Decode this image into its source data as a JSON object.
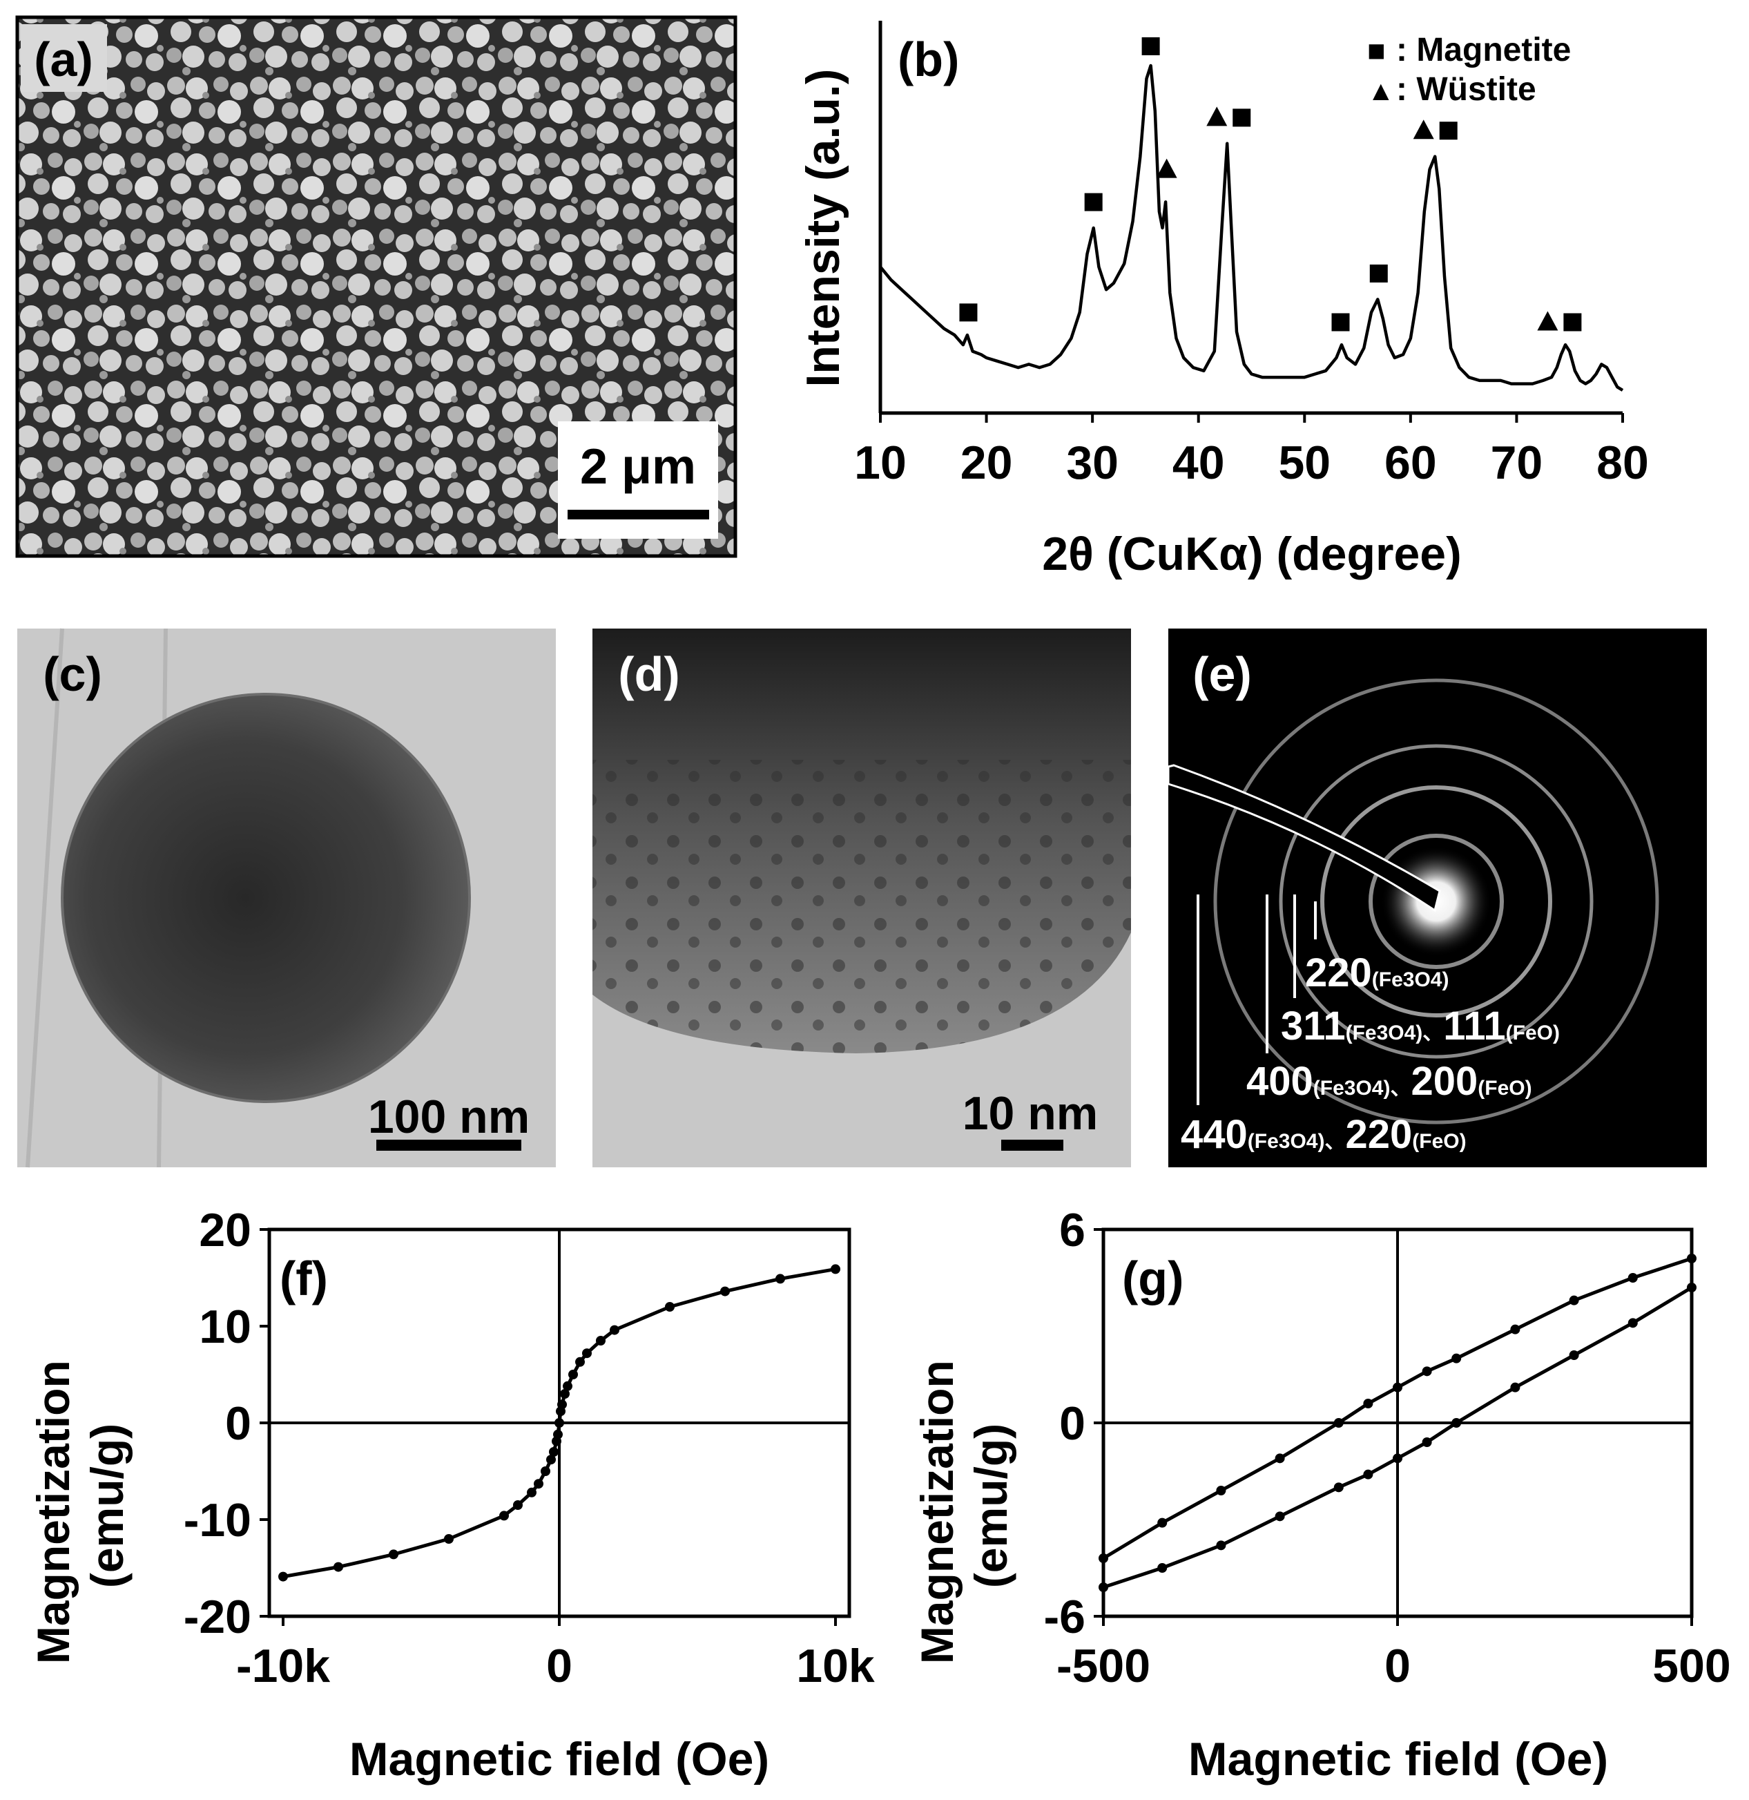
{
  "panels": {
    "a": {
      "label": "(a)",
      "scale_bar": "2 μm"
    },
    "c": {
      "label": "(c)",
      "scale_bar": "100 nm"
    },
    "d": {
      "label": "(d)",
      "scale_bar": "10 nm"
    },
    "e": {
      "label": "(e)",
      "rings": [
        {
          "line1": "220",
          "note1": "(Fe3O4)",
          "line2": "",
          "note2": ""
        },
        {
          "line1": "311",
          "note1": "(Fe3O4)、",
          "line2": "111",
          "note2": "(FeO)"
        },
        {
          "line1": "400",
          "note1": "(Fe3O4)、",
          "line2": "200",
          "note2": "(FeO)"
        },
        {
          "line1": "440",
          "note1": "(Fe3O4)、",
          "line2": "220",
          "note2": "(FeO)"
        }
      ]
    }
  },
  "chart_data": [
    {
      "id": "b",
      "type": "line",
      "panel_label": "(b)",
      "xlabel": "2θ (CuKα) (degree)",
      "ylabel": "Intensity (a.u.)",
      "xlim": [
        10,
        80
      ],
      "xticks": [
        10,
        20,
        30,
        40,
        50,
        60,
        70,
        80
      ],
      "yticks": [],
      "legend": {
        "placement": "top-right",
        "entries": [
          {
            "marker": "square",
            "symbol": "■",
            "label": ": Magnetite"
          },
          {
            "marker": "triangle",
            "symbol": "▲",
            "label": ": Wüstite"
          }
        ]
      },
      "series": [
        {
          "x": [
            10,
            11,
            12,
            13,
            14,
            15,
            16,
            17,
            17.8,
            18.2,
            18.7,
            19.5,
            20,
            21,
            22,
            23,
            24,
            25,
            26,
            27,
            28,
            28.8,
            29.5,
            30.1,
            30.6,
            31.3,
            32,
            33,
            33.8,
            34.5,
            35.1,
            35.5,
            35.9,
            36.3,
            36.6,
            36.9,
            37.3,
            37.9,
            38.6,
            39.5,
            40.5,
            41.5,
            42.2,
            42.7,
            43.1,
            43.6,
            44.3,
            45,
            46,
            47,
            48,
            49,
            50,
            51,
            52,
            53,
            53.5,
            54,
            54.8,
            55.6,
            56.3,
            56.9,
            57.4,
            57.9,
            58.5,
            59.3,
            60,
            60.7,
            61.3,
            61.8,
            62.3,
            62.7,
            63.2,
            63.8,
            64.6,
            65.5,
            66.5,
            67.5,
            68.5,
            69.5,
            70.5,
            71.5,
            72.5,
            73.3,
            73.8,
            74.2,
            74.6,
            75,
            75.5,
            76,
            76.5,
            77,
            77.5,
            78,
            78.5,
            79,
            79.5,
            80
          ],
          "y": [
            0.38,
            0.34,
            0.31,
            0.28,
            0.25,
            0.22,
            0.19,
            0.17,
            0.14,
            0.17,
            0.12,
            0.11,
            0.1,
            0.09,
            0.08,
            0.07,
            0.08,
            0.07,
            0.08,
            0.11,
            0.16,
            0.24,
            0.42,
            0.5,
            0.38,
            0.31,
            0.33,
            0.39,
            0.52,
            0.72,
            0.96,
            1.0,
            0.86,
            0.55,
            0.5,
            0.58,
            0.3,
            0.16,
            0.1,
            0.07,
            0.06,
            0.12,
            0.5,
            0.76,
            0.5,
            0.18,
            0.08,
            0.05,
            0.04,
            0.04,
            0.04,
            0.04,
            0.04,
            0.05,
            0.06,
            0.1,
            0.14,
            0.1,
            0.08,
            0.13,
            0.24,
            0.28,
            0.22,
            0.14,
            0.1,
            0.11,
            0.16,
            0.3,
            0.55,
            0.68,
            0.72,
            0.62,
            0.35,
            0.13,
            0.07,
            0.04,
            0.03,
            0.03,
            0.03,
            0.02,
            0.02,
            0.02,
            0.03,
            0.04,
            0.07,
            0.11,
            0.14,
            0.12,
            0.06,
            0.03,
            0.02,
            0.03,
            0.05,
            0.08,
            0.07,
            0.04,
            0.01,
            0.0
          ]
        }
      ],
      "peak_markers": [
        {
          "x": 18.3,
          "y": 0.18,
          "symbols": [
            "square"
          ]
        },
        {
          "x": 30.1,
          "y": 0.52,
          "symbols": [
            "square"
          ]
        },
        {
          "x": 35.5,
          "y": 1.0,
          "symbols": [
            "square"
          ]
        },
        {
          "x": 37.0,
          "y": 0.62,
          "symbols": [
            "triangle"
          ]
        },
        {
          "x": 42.9,
          "y": 0.78,
          "symbols": [
            "triangle",
            "square"
          ]
        },
        {
          "x": 53.4,
          "y": 0.15,
          "symbols": [
            "square"
          ]
        },
        {
          "x": 57.0,
          "y": 0.3,
          "symbols": [
            "square"
          ]
        },
        {
          "x": 62.4,
          "y": 0.74,
          "symbols": [
            "triangle",
            "square"
          ]
        },
        {
          "x": 74.1,
          "y": 0.15,
          "symbols": [
            "triangle",
            "square"
          ]
        }
      ]
    },
    {
      "id": "f",
      "type": "line",
      "panel_label": "(f)",
      "xlabel": "Magnetic field (Oe)",
      "ylabel": "Magnetization\n(emu/g)",
      "xlim": [
        -10500,
        10500
      ],
      "ylim": [
        -20,
        20
      ],
      "xticks": [
        {
          "value": -10000,
          "label": "-10k"
        },
        {
          "value": 0,
          "label": "0"
        },
        {
          "value": 10000,
          "label": "10k"
        }
      ],
      "yticks": [
        20,
        10,
        0,
        -10,
        -20
      ],
      "series": [
        {
          "x": [
            -10000,
            -8000,
            -6000,
            -4000,
            -2000,
            -1500,
            -1000,
            -750,
            -500,
            -300,
            -200,
            -100,
            -50,
            0,
            50,
            100,
            200,
            300,
            500,
            750,
            1000,
            1500,
            2000,
            4000,
            6000,
            8000,
            10000
          ],
          "y": [
            -15.9,
            -14.9,
            -13.6,
            -12.0,
            -9.6,
            -8.5,
            -7.2,
            -6.3,
            -5.0,
            -3.8,
            -3.0,
            -1.9,
            -1.2,
            0.0,
            1.2,
            1.9,
            3.0,
            3.8,
            5.0,
            6.3,
            7.2,
            8.5,
            9.6,
            12.0,
            13.6,
            14.9,
            15.9
          ]
        }
      ]
    },
    {
      "id": "g",
      "type": "line",
      "panel_label": "(g)",
      "xlabel": "Magnetic field (Oe)",
      "ylabel": "Magnetization\n(emu/g)",
      "xlim": [
        -500,
        500
      ],
      "ylim": [
        -6,
        6
      ],
      "xticks": [
        {
          "value": -500,
          "label": "-500"
        },
        {
          "value": 0,
          "label": "0"
        },
        {
          "value": 500,
          "label": "500"
        }
      ],
      "yticks": [
        6,
        0,
        -6
      ],
      "series": [
        {
          "x": [
            500,
            400,
            300,
            200,
            100,
            50,
            0,
            -50,
            -100,
            -200,
            -300,
            -400,
            -500
          ],
          "y": [
            5.1,
            4.5,
            3.8,
            2.9,
            2.0,
            1.6,
            1.1,
            0.6,
            0.0,
            -1.1,
            -2.1,
            -3.1,
            -4.2
          ]
        },
        {
          "x": [
            -500,
            -400,
            -300,
            -200,
            -100,
            -50,
            0,
            50,
            100,
            200,
            300,
            400,
            500
          ],
          "y": [
            -5.1,
            -4.5,
            -3.8,
            -2.9,
            -2.0,
            -1.6,
            -1.1,
            -0.6,
            0.0,
            1.1,
            2.1,
            3.1,
            4.2
          ]
        }
      ]
    }
  ]
}
